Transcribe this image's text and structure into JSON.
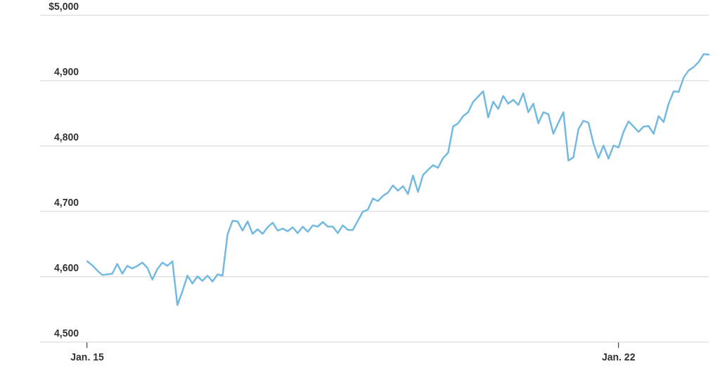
{
  "chart_data": {
    "type": "line",
    "categories": [
      "Jan. 15",
      null,
      null,
      null,
      null,
      null,
      null,
      null,
      null,
      null,
      null,
      null,
      null,
      null,
      null,
      null,
      null,
      null,
      null,
      null,
      null,
      null,
      null,
      null,
      null,
      null,
      null,
      null,
      null,
      null,
      null,
      null,
      null,
      null,
      null,
      null,
      null,
      null,
      null,
      null,
      null,
      null,
      null,
      null,
      null,
      null,
      null,
      null,
      null,
      null,
      null,
      null,
      null,
      null,
      null,
      null,
      null,
      null,
      null,
      null,
      null,
      null,
      null,
      null,
      null,
      null,
      null,
      null,
      null,
      null,
      null,
      null,
      null,
      null,
      null,
      null,
      null,
      null,
      null,
      null,
      null,
      null,
      null,
      null,
      null,
      null,
      null,
      null,
      null,
      null,
      null,
      null,
      null,
      null,
      null,
      null,
      null,
      null,
      null,
      null,
      null,
      null,
      null,
      null,
      null,
      null,
      "Jan. 22",
      null,
      null,
      null,
      null,
      null,
      null,
      null,
      null,
      null,
      null,
      null,
      null,
      null,
      null,
      null,
      null,
      null,
      null
    ],
    "series": [
      {
        "color": "#74b9e0",
        "values": [
          4624,
          4618,
          4610,
          4603,
          4604,
          4605,
          4620,
          4605,
          4617,
          4613,
          4617,
          4622,
          4614,
          4596,
          4612,
          4622,
          4617,
          4624,
          4557,
          4578,
          4602,
          4590,
          4601,
          4594,
          4602,
          4593,
          4604,
          4602,
          4665,
          4686,
          4685,
          4671,
          4685,
          4666,
          4673,
          4666,
          4676,
          4683,
          4671,
          4674,
          4670,
          4676,
          4667,
          4677,
          4669,
          4679,
          4677,
          4684,
          4677,
          4677,
          4667,
          4679,
          4672,
          4672,
          4686,
          4700,
          4703,
          4720,
          4716,
          4724,
          4729,
          4740,
          4732,
          4739,
          4727,
          4755,
          4730,
          4756,
          4764,
          4771,
          4767,
          4782,
          4790,
          4830,
          4835,
          4846,
          4852,
          4868,
          4876,
          4884,
          4844,
          4868,
          4857,
          4877,
          4865,
          4871,
          4863,
          4881,
          4852,
          4865,
          4835,
          4852,
          4849,
          4819,
          4836,
          4852,
          4778,
          4783,
          4826,
          4839,
          4836,
          4804,
          4782,
          4801,
          4781,
          4801,
          4798,
          4822,
          4838,
          4830,
          4822,
          4830,
          4831,
          4819,
          4846,
          4837,
          4865,
          4884,
          4883,
          4905,
          4916,
          4921,
          4929,
          4941,
          4940
        ]
      }
    ],
    "ylim": [
      4500,
      5000
    ],
    "yticks": [
      {
        "value": 4500,
        "label": "4,500"
      },
      {
        "value": 4600,
        "label": "4,600"
      },
      {
        "value": 4700,
        "label": "4,700"
      },
      {
        "value": 4800,
        "label": "4,800"
      },
      {
        "value": 4900,
        "label": "4,900"
      },
      {
        "value": 5000,
        "label": "$5,000"
      }
    ],
    "grid": "y"
  }
}
